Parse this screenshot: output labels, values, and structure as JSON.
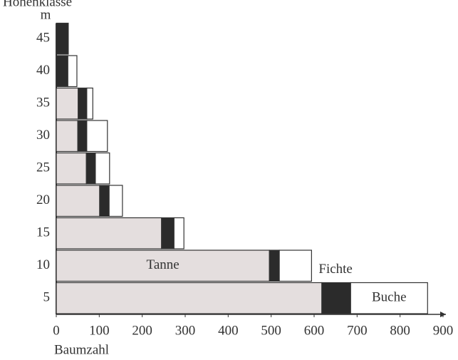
{
  "chart_data": {
    "type": "bar",
    "orientation": "horizontal",
    "stacked": true,
    "y_label": "Höhenklasse",
    "y_unit": "m",
    "x_label": "Baumzahl",
    "categories": [
      "5",
      "10",
      "15",
      "20",
      "25",
      "30",
      "35",
      "40",
      "45"
    ],
    "series": [
      {
        "name": "Tanne",
        "color": "#e4dede",
        "values": [
          618,
          496,
          245,
          101,
          70,
          50,
          51,
          0,
          0
        ]
      },
      {
        "name": "Fichte",
        "color": "#2b2b2b",
        "values": [
          67,
          23,
          29,
          22,
          21,
          21,
          20,
          27,
          28
        ]
      },
      {
        "name": "Buche",
        "color": "#ffffff",
        "values": [
          179,
          75,
          23,
          31,
          33,
          48,
          14,
          21,
          0
        ]
      }
    ],
    "xlim": [
      0,
      900
    ],
    "xticks": [
      0,
      100,
      200,
      300,
      400,
      500,
      600,
      700,
      800,
      900
    ]
  }
}
